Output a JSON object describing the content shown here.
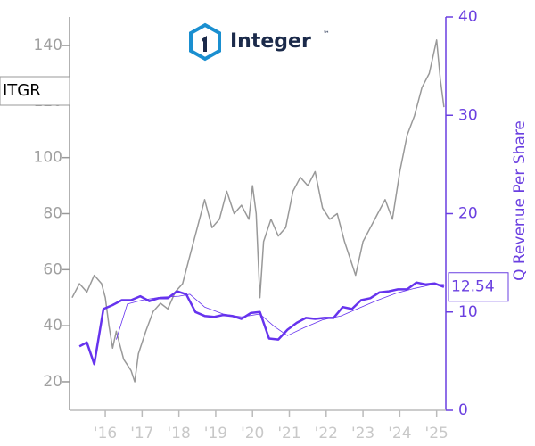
{
  "chart_data": {
    "type": "line",
    "ticker": "ITGR",
    "logo_text": "Integer",
    "logo_mark": "™",
    "y2_label": "Q Revenue Per Share",
    "xlim": [
      2015.03,
      2025.25
    ],
    "xticks": [
      {
        "value": 2016,
        "label": "'16"
      },
      {
        "value": 2017,
        "label": "'17"
      },
      {
        "value": 2018,
        "label": "'18"
      },
      {
        "value": 2019,
        "label": "'19"
      },
      {
        "value": 2020,
        "label": "'20"
      },
      {
        "value": 2021,
        "label": "'21"
      },
      {
        "value": 2022,
        "label": "'22"
      },
      {
        "value": 2023,
        "label": "'23"
      },
      {
        "value": 2024,
        "label": "'24"
      },
      {
        "value": 2025,
        "label": "'25"
      }
    ],
    "ylim": [
      9.8,
      150.2
    ],
    "yticks": [
      20,
      40,
      60,
      80,
      100,
      120,
      140
    ],
    "y2lim": [
      0,
      40
    ],
    "y2ticks": [
      0,
      10,
      20,
      30,
      40
    ],
    "series": [
      {
        "color": "#999999",
        "axis": "y",
        "x": [
          2015.1,
          2015.3,
          2015.5,
          2015.7,
          2015.9,
          2016.0,
          2016.1,
          2016.2,
          2016.3,
          2016.5,
          2016.7,
          2016.8,
          2016.9,
          2017.1,
          2017.3,
          2017.5,
          2017.7,
          2017.9,
          2018.1,
          2018.3,
          2018.5,
          2018.7,
          2018.9,
          2019.1,
          2019.3,
          2019.5,
          2019.7,
          2019.9,
          2020.0,
          2020.1,
          2020.2,
          2020.3,
          2020.5,
          2020.7,
          2020.9,
          2021.1,
          2021.3,
          2021.5,
          2021.7,
          2021.9,
          2022.1,
          2022.3,
          2022.5,
          2022.7,
          2022.8,
          2023.0,
          2023.2,
          2023.4,
          2023.6,
          2023.8,
          2024.0,
          2024.2,
          2024.4,
          2024.6,
          2024.8,
          2025.0,
          2025.1,
          2025.2
        ],
        "values": [
          50,
          55,
          52,
          58,
          55,
          50,
          40,
          32,
          38,
          28,
          24,
          20,
          30,
          38,
          45,
          48,
          46,
          52,
          55,
          65,
          75,
          85,
          75,
          78,
          88,
          80,
          83,
          78,
          90,
          80,
          50,
          70,
          78,
          72,
          75,
          88,
          93,
          90,
          95,
          82,
          78,
          80,
          70,
          62,
          58,
          70,
          75,
          80,
          85,
          78,
          95,
          108,
          115,
          125,
          130,
          142,
          128,
          118
        ]
      },
      {
        "color": "#6633ee",
        "axis": "y2",
        "x": [
          2015.3,
          2015.5,
          2015.7,
          2015.95,
          2016.2,
          2016.45,
          2016.7,
          2016.95,
          2017.2,
          2017.45,
          2017.7,
          2017.95,
          2018.2,
          2018.45,
          2018.7,
          2018.95,
          2019.2,
          2019.45,
          2019.7,
          2019.95,
          2020.2,
          2020.45,
          2020.7,
          2020.95,
          2021.2,
          2021.45,
          2021.7,
          2021.95,
          2022.2,
          2022.45,
          2022.7,
          2022.95,
          2023.2,
          2023.45,
          2023.7,
          2023.95,
          2024.2,
          2024.45,
          2024.7,
          2024.95,
          2025.2
        ],
        "values": [
          6.5,
          6.9,
          4.7,
          10.3,
          10.7,
          11.2,
          11.2,
          11.6,
          11.1,
          11.4,
          11.4,
          12.1,
          11.8,
          10.0,
          9.6,
          9.5,
          9.7,
          9.6,
          9.3,
          9.9,
          10.0,
          7.3,
          7.2,
          8.2,
          8.9,
          9.4,
          9.3,
          9.4,
          9.4,
          10.5,
          10.3,
          11.2,
          11.4,
          12.0,
          12.1,
          12.3,
          12.3,
          13.0,
          12.8,
          12.9,
          12.54
        ]
      },
      {
        "color": "#6633ee",
        "axis": "y2",
        "x": [
          2016.3,
          2016.6,
          2017.0,
          2017.5,
          2018.0,
          2018.3,
          2018.7,
          2019.2,
          2019.7,
          2020.2,
          2020.6,
          2020.95,
          2021.4,
          2021.9,
          2022.4,
          2022.9,
          2023.4,
          2023.9,
          2024.4,
          2024.9,
          2025.2
        ],
        "values": [
          7.2,
          10.8,
          11.2,
          11.5,
          11.6,
          11.8,
          10.5,
          9.8,
          9.5,
          9.8,
          8.5,
          7.6,
          8.4,
          9.2,
          9.6,
          10.4,
          11.2,
          11.9,
          12.4,
          12.8,
          12.8
        ]
      }
    ]
  }
}
